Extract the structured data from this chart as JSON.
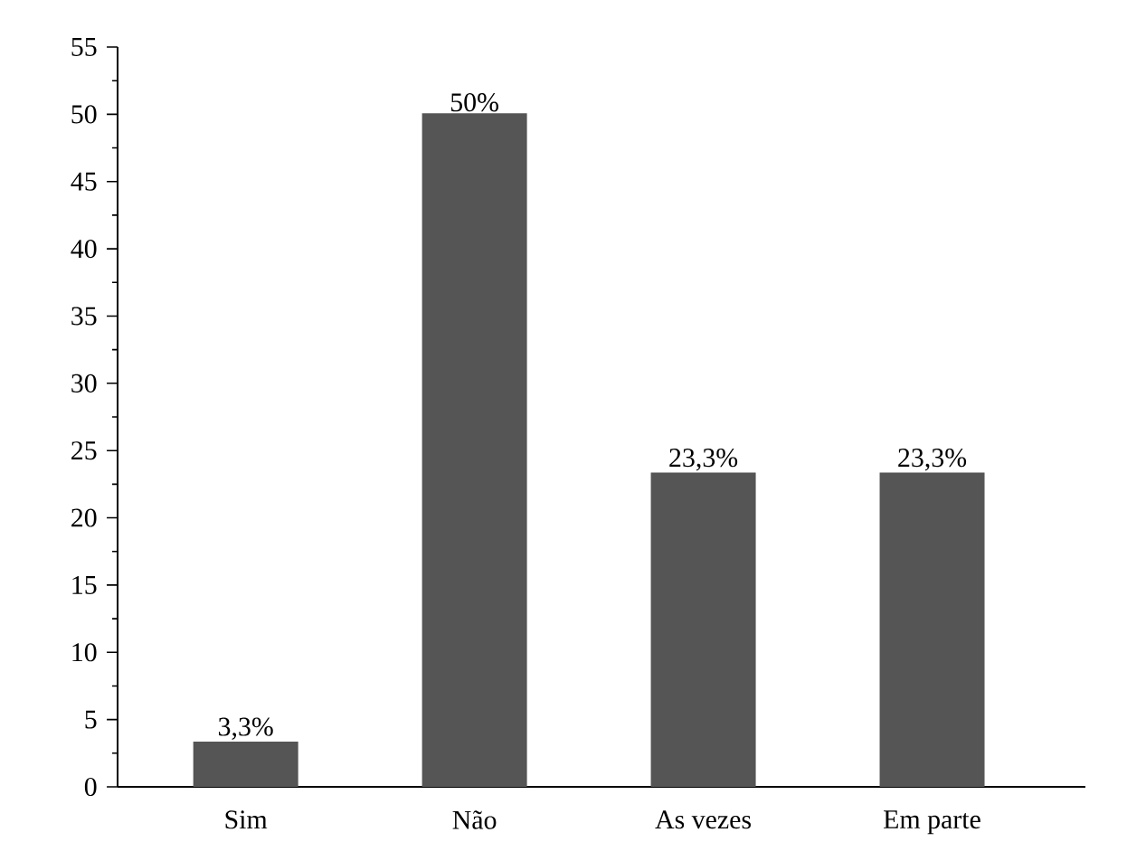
{
  "chart_data": {
    "type": "bar",
    "categories": [
      "Sim",
      "Não",
      "As vezes",
      "Em parte"
    ],
    "values": [
      3.3,
      50,
      23.3,
      23.3
    ],
    "value_labels": [
      "3,3%",
      "50%",
      "23,3%",
      "23,3%"
    ],
    "color": "#555555",
    "ylim": [
      0,
      55
    ],
    "yticks": [
      0,
      5,
      10,
      15,
      20,
      25,
      30,
      35,
      40,
      45,
      50,
      55
    ]
  }
}
